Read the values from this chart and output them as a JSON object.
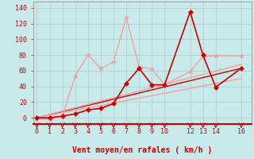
{
  "xlabel": "Vent moyen/en rafales ( km/h )",
  "background_color": "#c8eaea",
  "grid_color": "#b0c8c8",
  "xlim": [
    -0.3,
    16.8
  ],
  "ylim": [
    -8,
    148
  ],
  "xticks": [
    0,
    1,
    2,
    3,
    4,
    5,
    6,
    7,
    8,
    9,
    10,
    12,
    13,
    14,
    16
  ],
  "yticks": [
    0,
    20,
    40,
    60,
    80,
    100,
    120,
    140
  ],
  "series": [
    {
      "x": [
        0,
        1,
        2,
        3,
        4,
        5,
        6,
        7,
        8,
        9,
        10,
        12,
        13,
        14,
        16
      ],
      "y": [
        -2,
        -2,
        2,
        53,
        80,
        63,
        71,
        128,
        65,
        62,
        42,
        59,
        78,
        79,
        79
      ],
      "color": "#f4a0a0",
      "linewidth": 1.0,
      "marker": "*",
      "markersize": 4,
      "has_marker": true,
      "zorder": 3
    },
    {
      "x": [
        0,
        1,
        2,
        3,
        4,
        5,
        6,
        7,
        8,
        9,
        10,
        12,
        13,
        14,
        16
      ],
      "y": [
        0,
        0,
        2,
        5,
        10,
        12,
        18,
        44,
        63,
        42,
        42,
        135,
        80,
        39,
        63
      ],
      "color": "#cc0000",
      "linewidth": 1.2,
      "marker": "D",
      "markersize": 3,
      "has_marker": true,
      "zorder": 4
    },
    {
      "x": [
        0,
        16
      ],
      "y": [
        0,
        63
      ],
      "color": "#cc0000",
      "linewidth": 1.0,
      "has_marker": false,
      "zorder": 2
    },
    {
      "x": [
        0,
        16
      ],
      "y": [
        0,
        50
      ],
      "color": "#f4a0a0",
      "linewidth": 1.0,
      "has_marker": false,
      "zorder": 2
    },
    {
      "x": [
        0,
        16
      ],
      "y": [
        0,
        68
      ],
      "color": "#f4a0a0",
      "linewidth": 1.0,
      "has_marker": false,
      "zorder": 2
    }
  ]
}
